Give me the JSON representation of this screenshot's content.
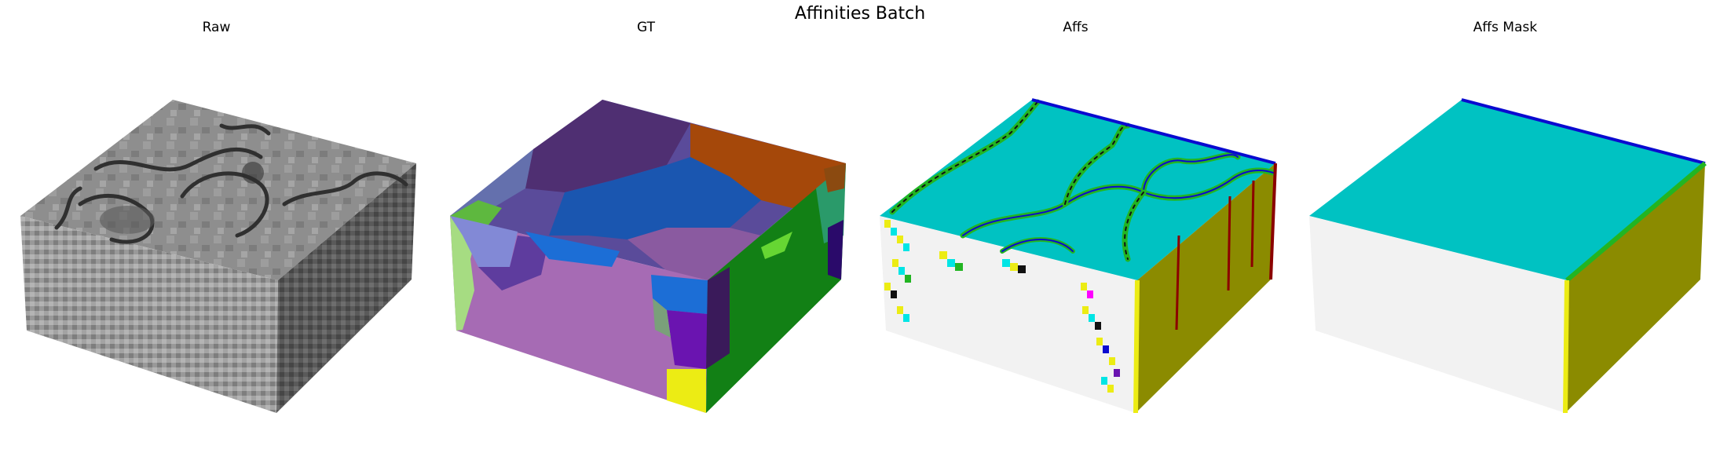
{
  "figure": {
    "title": "Affinities Batch"
  },
  "panels": [
    {
      "title": "Raw"
    },
    {
      "title": "GT"
    },
    {
      "title": "Affs"
    },
    {
      "title": "Affs Mask"
    }
  ],
  "colors": {
    "raw_light": "#a9a9a9",
    "raw_mid": "#7a7a7a",
    "raw_dark": "#4a4a4a",
    "gt_purple": "#a66bb4",
    "gt_blue": "#1a56b0",
    "gt_dark_purple": "#4f2f72",
    "gt_orange": "#a5480a",
    "gt_slate": "#6470ad",
    "gt_green": "#128015",
    "gt_yellow": "#ecec14",
    "gt_light_green": "#a6dc82",
    "affs_cyan": "#00c2c2",
    "affs_white": "#f2f2f2",
    "affs_olive": "#8b8b00",
    "affs_green": "#22b522",
    "affs_blue": "#0a0ad0",
    "mask_cyan": "#00c2c2",
    "mask_white": "#f2f2f2",
    "mask_olive": "#8b8b00"
  }
}
